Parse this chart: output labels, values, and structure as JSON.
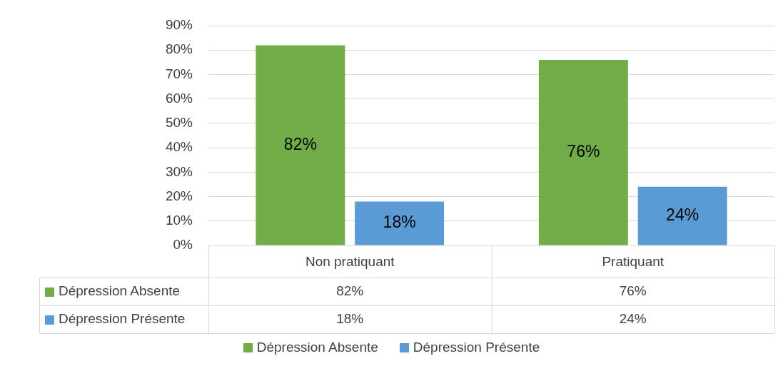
{
  "chart_data": {
    "type": "bar",
    "categories": [
      "Non pratiquant",
      "Pratiquant"
    ],
    "series": [
      {
        "name": "Dépression Absente",
        "color": "#70ad47",
        "values": [
          82,
          76
        ],
        "value_labels": [
          "82%",
          "76%"
        ]
      },
      {
        "name": "Dépression Présente",
        "color": "#5b9bd5",
        "values": [
          18,
          24
        ],
        "value_labels": [
          "18%",
          "24%"
        ]
      }
    ],
    "ylim": [
      0,
      90
    ],
    "yticks": [
      {
        "value": 0,
        "label": "0%"
      },
      {
        "value": 10,
        "label": "10%"
      },
      {
        "value": 20,
        "label": "20%"
      },
      {
        "value": 30,
        "label": "30%"
      },
      {
        "value": 40,
        "label": "40%"
      },
      {
        "value": 50,
        "label": "50%"
      },
      {
        "value": 60,
        "label": "60%"
      },
      {
        "value": 70,
        "label": "70%"
      },
      {
        "value": 80,
        "label": "80%"
      },
      {
        "value": 90,
        "label": "90%"
      }
    ],
    "grid": "y",
    "legend": "bottom"
  }
}
